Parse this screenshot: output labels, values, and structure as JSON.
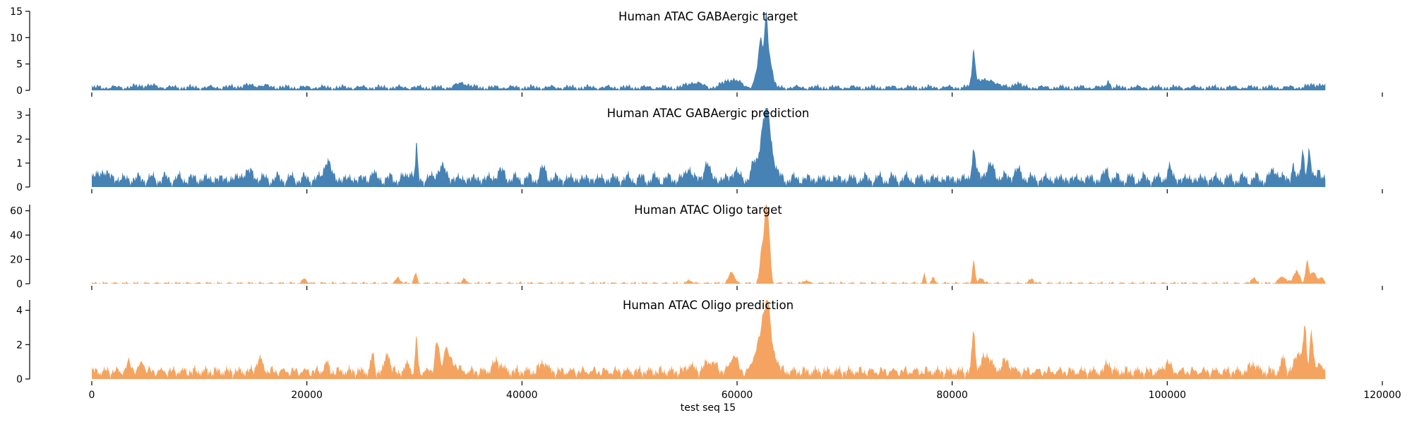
{
  "chart_data": {
    "type": "area",
    "xlabel": "test seq 15",
    "xlim": [
      0,
      120000
    ],
    "x_ticks": [
      0,
      20000,
      40000,
      60000,
      80000,
      100000,
      120000
    ],
    "data_x_range": [
      0,
      114700
    ],
    "colors": {
      "blue": "#4682b4",
      "orange": "#f4a460"
    },
    "panels": [
      {
        "title": "Human ATAC GABAergic target",
        "color": "#4682b4",
        "ylim": [
          0,
          15
        ],
        "y_ticks": [
          0,
          5,
          10,
          15
        ],
        "baseline": 0.6,
        "noise": 0.45,
        "noise_freq": 1.7,
        "peaks": [
          [
            5000,
            0.4,
            800
          ],
          [
            15000,
            0.4,
            1200
          ],
          [
            34500,
            0.9,
            500
          ],
          [
            56000,
            1.0,
            600
          ],
          [
            59500,
            1.6,
            700
          ],
          [
            61800,
            2.0,
            250
          ],
          [
            62200,
            8.5,
            200
          ],
          [
            62700,
            13.5,
            160
          ],
          [
            63100,
            5.0,
            220
          ],
          [
            82000,
            6.6,
            140
          ],
          [
            82500,
            1.5,
            500
          ],
          [
            83800,
            1.2,
            500
          ],
          [
            86000,
            1.0,
            300
          ],
          [
            94500,
            1.5,
            150
          ],
          [
            114000,
            0.6,
            700
          ]
        ]
      },
      {
        "title": "Human ATAC GABAergic prediction",
        "color": "#4682b4",
        "ylim": [
          0,
          3.3
        ],
        "y_ticks": [
          0,
          1,
          2,
          3
        ],
        "baseline": 0.35,
        "noise": 0.25,
        "noise_freq": 2.3,
        "peaks": [
          [
            1000,
            0.3,
            500
          ],
          [
            14500,
            0.3,
            500
          ],
          [
            21900,
            0.8,
            300
          ],
          [
            26100,
            0.3,
            180
          ],
          [
            29600,
            0.4,
            200
          ],
          [
            30200,
            1.3,
            100
          ],
          [
            32500,
            0.5,
            400
          ],
          [
            38000,
            0.3,
            400
          ],
          [
            42000,
            0.4,
            300
          ],
          [
            55500,
            0.5,
            250
          ],
          [
            57200,
            0.7,
            250
          ],
          [
            59800,
            0.4,
            250
          ],
          [
            61600,
            0.6,
            300
          ],
          [
            62300,
            1.8,
            250
          ],
          [
            62800,
            2.5,
            250
          ],
          [
            63300,
            1.0,
            300
          ],
          [
            82000,
            1.2,
            180
          ],
          [
            83500,
            0.5,
            500
          ],
          [
            86000,
            0.3,
            500
          ],
          [
            94400,
            0.4,
            200
          ],
          [
            100200,
            0.5,
            200
          ],
          [
            110000,
            0.4,
            300
          ],
          [
            111700,
            0.6,
            150
          ],
          [
            112600,
            1.2,
            150
          ],
          [
            113200,
            1.2,
            150
          ],
          [
            114100,
            0.4,
            200
          ]
        ]
      },
      {
        "title": "Human ATAC Oligo target",
        "color": "#f4a460",
        "ylim": [
          0,
          65
        ],
        "y_ticks": [
          0,
          20,
          40,
          60
        ],
        "baseline": 0.4,
        "noise": 1.3,
        "noise_freq": 3.1,
        "peaks": [
          [
            19800,
            4,
            200
          ],
          [
            28500,
            5,
            200
          ],
          [
            30100,
            8,
            150
          ],
          [
            34600,
            5,
            150
          ],
          [
            55600,
            3,
            200
          ],
          [
            59500,
            10,
            250
          ],
          [
            62300,
            28,
            180
          ],
          [
            62700,
            60,
            170
          ],
          [
            63000,
            30,
            150
          ],
          [
            66400,
            3,
            200
          ],
          [
            77400,
            8,
            100
          ],
          [
            78200,
            5,
            150
          ],
          [
            82000,
            20,
            120
          ],
          [
            82700,
            5,
            200
          ],
          [
            87400,
            4,
            200
          ],
          [
            108000,
            5,
            200
          ],
          [
            110700,
            6,
            300
          ],
          [
            112000,
            10,
            300
          ],
          [
            113000,
            18,
            150
          ],
          [
            113600,
            10,
            250
          ],
          [
            114400,
            5,
            200
          ]
        ]
      },
      {
        "title": "Human ATAC Oligo prediction",
        "color": "#f4a460",
        "ylim": [
          0,
          4.6
        ],
        "y_ticks": [
          0,
          2,
          4
        ],
        "baseline": 0.45,
        "noise": 0.3,
        "noise_freq": 2.9,
        "peaks": [
          [
            3500,
            0.5,
            250
          ],
          [
            4700,
            0.6,
            200
          ],
          [
            15600,
            0.7,
            300
          ],
          [
            21800,
            0.5,
            200
          ],
          [
            26100,
            1.0,
            150
          ],
          [
            27500,
            1.2,
            200
          ],
          [
            29400,
            0.6,
            150
          ],
          [
            30200,
            2.1,
            100
          ],
          [
            32100,
            1.7,
            200
          ],
          [
            32900,
            1.3,
            200
          ],
          [
            33500,
            0.6,
            400
          ],
          [
            37700,
            0.6,
            400
          ],
          [
            42000,
            0.6,
            300
          ],
          [
            55600,
            0.4,
            300
          ],
          [
            57500,
            0.6,
            500
          ],
          [
            59700,
            1.0,
            300
          ],
          [
            61900,
            1.5,
            350
          ],
          [
            62500,
            2.6,
            250
          ],
          [
            62900,
            3.4,
            220
          ],
          [
            63500,
            1.0,
            300
          ],
          [
            82000,
            2.4,
            150
          ],
          [
            83200,
            1.0,
            400
          ],
          [
            85000,
            0.6,
            400
          ],
          [
            94500,
            0.6,
            200
          ],
          [
            100000,
            0.6,
            250
          ],
          [
            108000,
            0.5,
            300
          ],
          [
            110800,
            0.8,
            200
          ],
          [
            112200,
            1.2,
            300
          ],
          [
            112800,
            2.4,
            150
          ],
          [
            113400,
            2.5,
            150
          ],
          [
            114200,
            0.6,
            200
          ]
        ]
      }
    ]
  }
}
